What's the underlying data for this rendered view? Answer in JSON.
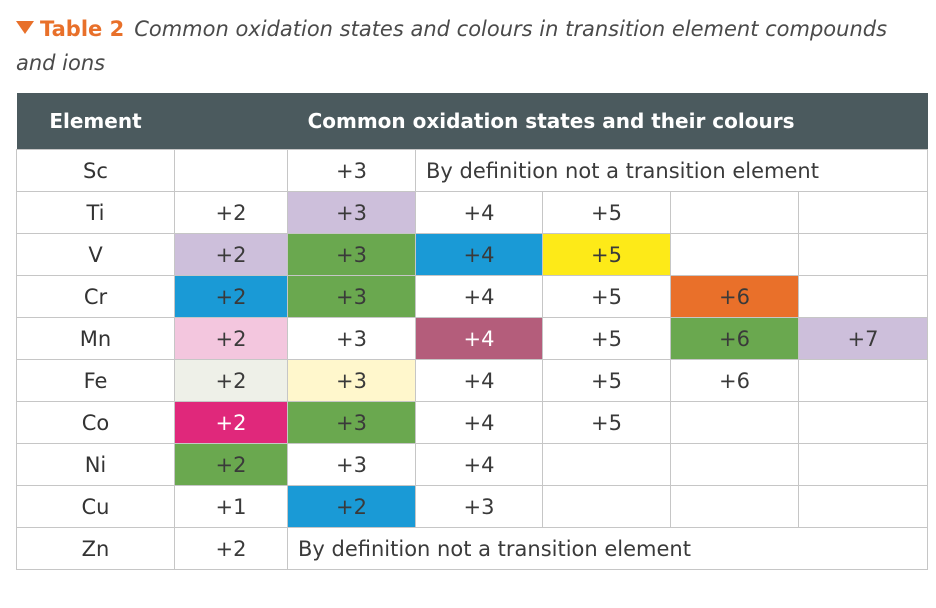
{
  "caption": {
    "label": "Table 2",
    "title": "Common oxidation states and colours in transition element compounds and ions"
  },
  "headers": {
    "element": "Element",
    "states": "Common oxidation states and their colours"
  },
  "colors": {
    "header_bg": "#4b5a5e",
    "accent": "#e8702a",
    "pale_purple": "#cdbfdb",
    "green": "#6aa84f",
    "blue": "#1a9ad6",
    "yellow": "#fdea18",
    "orange": "#e9702a",
    "pink": "#f3c6de",
    "maroon": "#b45d7b",
    "pale_grey": "#eef0e8",
    "pale_yellow": "#fff7cc",
    "magenta": "#e0287b"
  },
  "rows": [
    {
      "element": "Sc",
      "note": "By definition not a transition element",
      "cells": [
        {
          "text": "",
          "bg": ""
        },
        {
          "text": "+3",
          "bg": ""
        }
      ]
    },
    {
      "element": "Ti",
      "cells": [
        {
          "text": "+2",
          "bg": ""
        },
        {
          "text": "+3",
          "bg": "#cdbfdb"
        },
        {
          "text": "+4",
          "bg": ""
        },
        {
          "text": "+5",
          "bg": ""
        },
        {
          "text": "",
          "bg": ""
        },
        {
          "text": "",
          "bg": ""
        }
      ]
    },
    {
      "element": "V",
      "cells": [
        {
          "text": "+2",
          "bg": "#cdbfdb"
        },
        {
          "text": "+3",
          "bg": "#6aa84f"
        },
        {
          "text": "+4",
          "bg": "#1a9ad6"
        },
        {
          "text": "+5",
          "bg": "#fdea18"
        },
        {
          "text": "",
          "bg": ""
        },
        {
          "text": "",
          "bg": ""
        }
      ]
    },
    {
      "element": "Cr",
      "cells": [
        {
          "text": "+2",
          "bg": "#1a9ad6"
        },
        {
          "text": "+3",
          "bg": "#6aa84f"
        },
        {
          "text": "+4",
          "bg": ""
        },
        {
          "text": "+5",
          "bg": ""
        },
        {
          "text": "+6",
          "bg": "#e9702a"
        },
        {
          "text": "",
          "bg": ""
        }
      ]
    },
    {
      "element": "Mn",
      "cells": [
        {
          "text": "+2",
          "bg": "#f3c6de"
        },
        {
          "text": "+3",
          "bg": ""
        },
        {
          "text": "+4",
          "bg": "#b45d7b",
          "fg": "#ffffff"
        },
        {
          "text": "+5",
          "bg": ""
        },
        {
          "text": "+6",
          "bg": "#6aa84f"
        },
        {
          "text": "+7",
          "bg": "#cdbfdb"
        }
      ]
    },
    {
      "element": "Fe",
      "cells": [
        {
          "text": "+2",
          "bg": "#eef0e8"
        },
        {
          "text": "+3",
          "bg": "#fff7cc"
        },
        {
          "text": "+4",
          "bg": ""
        },
        {
          "text": "+5",
          "bg": ""
        },
        {
          "text": "+6",
          "bg": ""
        },
        {
          "text": "",
          "bg": ""
        }
      ]
    },
    {
      "element": "Co",
      "cells": [
        {
          "text": "+2",
          "bg": "#e0287b",
          "fg": "#ffffff"
        },
        {
          "text": "+3",
          "bg": "#6aa84f"
        },
        {
          "text": "+4",
          "bg": ""
        },
        {
          "text": "+5",
          "bg": ""
        },
        {
          "text": "",
          "bg": ""
        },
        {
          "text": "",
          "bg": ""
        }
      ]
    },
    {
      "element": "Ni",
      "cells": [
        {
          "text": "+2",
          "bg": "#6aa84f"
        },
        {
          "text": "+3",
          "bg": ""
        },
        {
          "text": "+4",
          "bg": ""
        },
        {
          "text": "",
          "bg": ""
        },
        {
          "text": "",
          "bg": ""
        },
        {
          "text": "",
          "bg": ""
        }
      ]
    },
    {
      "element": "Cu",
      "cells": [
        {
          "text": "+1",
          "bg": ""
        },
        {
          "text": "+2",
          "bg": "#1a9ad6"
        },
        {
          "text": "+3",
          "bg": ""
        },
        {
          "text": "",
          "bg": ""
        },
        {
          "text": "",
          "bg": ""
        },
        {
          "text": "",
          "bg": ""
        }
      ]
    },
    {
      "element": "Zn",
      "note": "By definition not a transition element",
      "cells": [
        {
          "text": "+2",
          "bg": ""
        }
      ]
    }
  ]
}
